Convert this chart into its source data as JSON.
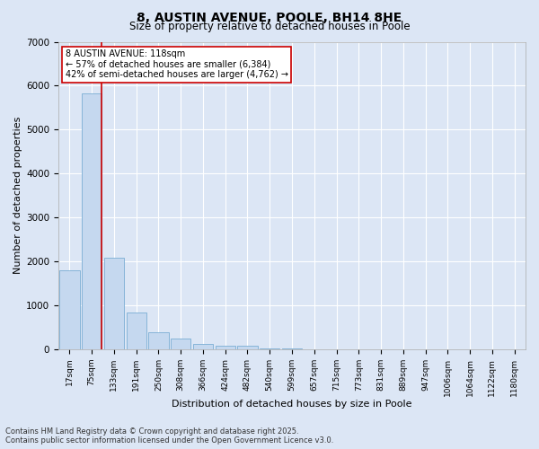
{
  "title": "8, AUSTIN AVENUE, POOLE, BH14 8HE",
  "subtitle": "Size of property relative to detached houses in Poole",
  "xlabel": "Distribution of detached houses by size in Poole",
  "ylabel": "Number of detached properties",
  "bar_color": "#c5d8ef",
  "bar_edge_color": "#7aadd4",
  "background_color": "#dce6f5",
  "grid_color": "#ffffff",
  "categories": [
    "17sqm",
    "75sqm",
    "133sqm",
    "191sqm",
    "250sqm",
    "308sqm",
    "366sqm",
    "424sqm",
    "482sqm",
    "540sqm",
    "599sqm",
    "657sqm",
    "715sqm",
    "773sqm",
    "831sqm",
    "889sqm",
    "947sqm",
    "1006sqm",
    "1064sqm",
    "1122sqm",
    "1180sqm"
  ],
  "values": [
    1800,
    5820,
    2080,
    840,
    380,
    250,
    130,
    90,
    90,
    30,
    10,
    0,
    0,
    0,
    0,
    0,
    0,
    0,
    0,
    0,
    0
  ],
  "ylim": [
    0,
    7000
  ],
  "yticks": [
    0,
    1000,
    2000,
    3000,
    4000,
    5000,
    6000,
    7000
  ],
  "vline_x_index": 1,
  "annotation_text": "8 AUSTIN AVENUE: 118sqm\n← 57% of detached houses are smaller (6,384)\n42% of semi-detached houses are larger (4,762) →",
  "annotation_box_color": "#ffffff",
  "annotation_border_color": "#cc0000",
  "vline_color": "#cc0000",
  "footer_text": "Contains HM Land Registry data © Crown copyright and database right 2025.\nContains public sector information licensed under the Open Government Licence v3.0.",
  "figsize": [
    6.0,
    5.0
  ],
  "dpi": 100
}
